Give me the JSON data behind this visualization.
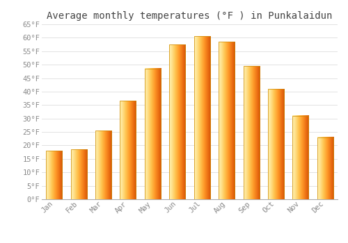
{
  "title": "Average monthly temperatures (°F ) in Punkalaidun",
  "months": [
    "Jan",
    "Feb",
    "Mar",
    "Apr",
    "May",
    "Jun",
    "Jul",
    "Aug",
    "Sep",
    "Oct",
    "Nov",
    "Dec"
  ],
  "values": [
    18,
    18.5,
    25.5,
    36.5,
    48.5,
    57.5,
    60.5,
    58.5,
    49.5,
    41,
    31,
    23
  ],
  "bar_color": "#FFA500",
  "bar_edge_color": "#CC8800",
  "background_color": "#FFFFFF",
  "grid_color": "#DDDDDD",
  "text_color": "#888888",
  "ylim": [
    0,
    65
  ],
  "yticks": [
    0,
    5,
    10,
    15,
    20,
    25,
    30,
    35,
    40,
    45,
    50,
    55,
    60,
    65
  ],
  "title_fontsize": 10,
  "tick_fontsize": 7.5
}
